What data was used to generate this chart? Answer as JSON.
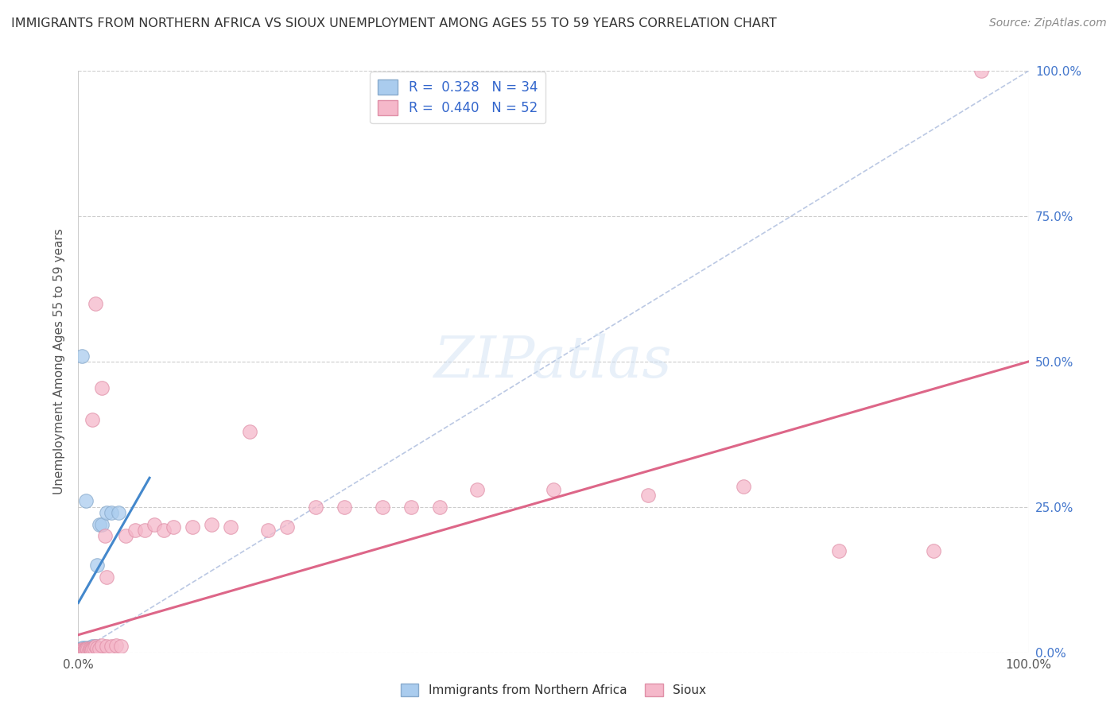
{
  "title": "IMMIGRANTS FROM NORTHERN AFRICA VS SIOUX UNEMPLOYMENT AMONG AGES 55 TO 59 YEARS CORRELATION CHART",
  "source": "Source: ZipAtlas.com",
  "ylabel": "Unemployment Among Ages 55 to 59 years",
  "xlim": [
    0.0,
    1.0
  ],
  "ylim": [
    0.0,
    1.0
  ],
  "xtick_positions": [
    0.0,
    1.0
  ],
  "xtick_labels": [
    "0.0%",
    "100.0%"
  ],
  "ytick_values": [
    0.0,
    0.25,
    0.5,
    0.75,
    1.0
  ],
  "ytick_labels": [
    "0.0%",
    "25.0%",
    "50.0%",
    "75.0%",
    "100.0%"
  ],
  "grid_color": "#cccccc",
  "background_color": "#ffffff",
  "right_tick_color": "#4477cc",
  "left_tick_color": "#888888",
  "watermark_text": "ZIPatlas",
  "blue_scatter_x": [
    0.002,
    0.003,
    0.003,
    0.004,
    0.004,
    0.005,
    0.005,
    0.005,
    0.006,
    0.006,
    0.007,
    0.007,
    0.008,
    0.008,
    0.009,
    0.009,
    0.01,
    0.01,
    0.011,
    0.011,
    0.012,
    0.013,
    0.014,
    0.015,
    0.016,
    0.018,
    0.02,
    0.022,
    0.025,
    0.03,
    0.035,
    0.042,
    0.004,
    0.008
  ],
  "blue_scatter_y": [
    0.004,
    0.003,
    0.006,
    0.003,
    0.005,
    0.004,
    0.006,
    0.008,
    0.003,
    0.005,
    0.004,
    0.006,
    0.005,
    0.008,
    0.003,
    0.006,
    0.004,
    0.007,
    0.005,
    0.008,
    0.005,
    0.006,
    0.008,
    0.01,
    0.008,
    0.01,
    0.15,
    0.22,
    0.22,
    0.24,
    0.24,
    0.24,
    0.51,
    0.26
  ],
  "pink_scatter_x": [
    0.002,
    0.003,
    0.004,
    0.005,
    0.006,
    0.007,
    0.008,
    0.009,
    0.01,
    0.011,
    0.012,
    0.013,
    0.014,
    0.015,
    0.016,
    0.018,
    0.02,
    0.022,
    0.025,
    0.028,
    0.03,
    0.035,
    0.04,
    0.045,
    0.05,
    0.06,
    0.07,
    0.08,
    0.09,
    0.1,
    0.12,
    0.14,
    0.16,
    0.18,
    0.2,
    0.22,
    0.25,
    0.28,
    0.32,
    0.35,
    0.38,
    0.42,
    0.5,
    0.6,
    0.7,
    0.8,
    0.9,
    0.95,
    0.015,
    0.025,
    0.018,
    0.03
  ],
  "pink_scatter_y": [
    0.004,
    0.003,
    0.005,
    0.004,
    0.003,
    0.005,
    0.004,
    0.006,
    0.005,
    0.004,
    0.006,
    0.005,
    0.004,
    0.006,
    0.008,
    0.01,
    0.008,
    0.006,
    0.012,
    0.2,
    0.01,
    0.01,
    0.012,
    0.01,
    0.2,
    0.21,
    0.21,
    0.22,
    0.21,
    0.215,
    0.215,
    0.22,
    0.215,
    0.38,
    0.21,
    0.215,
    0.25,
    0.25,
    0.25,
    0.25,
    0.25,
    0.28,
    0.28,
    0.27,
    0.285,
    0.175,
    0.175,
    1.0,
    0.4,
    0.455,
    0.6,
    0.13
  ],
  "blue_trend_x": [
    0.0,
    0.075
  ],
  "blue_trend_y": [
    0.085,
    0.3
  ],
  "pink_trend_x": [
    0.0,
    1.0
  ],
  "pink_trend_y": [
    0.03,
    0.5
  ],
  "diag_line_x": [
    0.0,
    1.0
  ],
  "diag_line_y": [
    0.0,
    1.0
  ]
}
